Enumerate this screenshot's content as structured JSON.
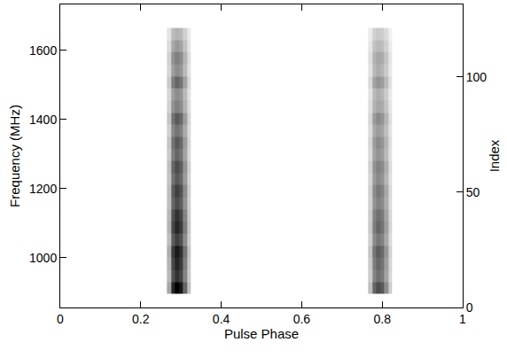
{
  "chart_data": {
    "type": "heatmap",
    "xlabel": "Pulse Phase",
    "ylabel": "Frequency (MHz)",
    "y2label": "Index",
    "xlim": [
      0,
      1
    ],
    "xticks": [
      0,
      0.2,
      0.4,
      0.6,
      0.8,
      1
    ],
    "ylim": [
      856,
      1733
    ],
    "yticks": [
      1000,
      1200,
      1400,
      1600
    ],
    "y2lim": [
      0,
      131.5
    ],
    "y2ticks": [
      0,
      50,
      100
    ],
    "grid": false,
    "colors": [
      "#ffffff",
      "#000000"
    ],
    "zlim": [
      0,
      1
    ],
    "x_edges": [
      0.265,
      0.275,
      0.285,
      0.295,
      0.305,
      0.315,
      0.325,
      0.765,
      0.775,
      0.785,
      0.795,
      0.805,
      0.815,
      0.825
    ],
    "y_edges": [
      895,
      930,
      965,
      1000,
      1035,
      1070,
      1105,
      1140,
      1175,
      1210,
      1245,
      1280,
      1315,
      1350,
      1385,
      1420,
      1455,
      1490,
      1525,
      1560,
      1595,
      1630,
      1665
    ],
    "cells": [
      [
        0.35,
        0.85,
        1.0,
        0.9,
        0.6,
        0.25,
        0,
        0.25,
        0.6,
        0.7,
        0.65,
        0.45,
        0.2
      ],
      [
        0.28,
        0.68,
        0.8,
        0.72,
        0.48,
        0.2,
        0,
        0.2,
        0.48,
        0.56,
        0.52,
        0.36,
        0.16
      ],
      [
        0.3,
        0.72,
        0.85,
        0.77,
        0.51,
        0.21,
        0,
        0.21,
        0.51,
        0.6,
        0.55,
        0.38,
        0.17
      ],
      [
        0.32,
        0.77,
        0.9,
        0.81,
        0.54,
        0.23,
        0,
        0.23,
        0.54,
        0.63,
        0.59,
        0.41,
        0.18
      ],
      [
        0.26,
        0.64,
        0.75,
        0.68,
        0.45,
        0.19,
        0,
        0.19,
        0.45,
        0.53,
        0.49,
        0.34,
        0.15
      ],
      [
        0.3,
        0.72,
        0.85,
        0.77,
        0.51,
        0.21,
        0,
        0.21,
        0.51,
        0.6,
        0.55,
        0.38,
        0.17
      ],
      [
        0.28,
        0.68,
        0.8,
        0.72,
        0.48,
        0.2,
        0,
        0.2,
        0.48,
        0.56,
        0.52,
        0.36,
        0.16
      ],
      [
        0.25,
        0.6,
        0.7,
        0.63,
        0.42,
        0.18,
        0,
        0.18,
        0.42,
        0.49,
        0.46,
        0.32,
        0.14
      ],
      [
        0.26,
        0.64,
        0.75,
        0.68,
        0.45,
        0.19,
        0,
        0.19,
        0.45,
        0.53,
        0.49,
        0.34,
        0.15
      ],
      [
        0.23,
        0.55,
        0.65,
        0.59,
        0.39,
        0.16,
        0,
        0.16,
        0.39,
        0.46,
        0.42,
        0.29,
        0.13
      ],
      [
        0.25,
        0.6,
        0.7,
        0.63,
        0.42,
        0.18,
        0,
        0.18,
        0.42,
        0.49,
        0.46,
        0.32,
        0.14
      ],
      [
        0.21,
        0.51,
        0.6,
        0.54,
        0.36,
        0.15,
        0,
        0.15,
        0.36,
        0.42,
        0.39,
        0.27,
        0.12
      ],
      [
        0.23,
        0.55,
        0.65,
        0.59,
        0.39,
        0.16,
        0,
        0.16,
        0.39,
        0.46,
        0.42,
        0.29,
        0.13
      ],
      [
        0.19,
        0.47,
        0.55,
        0.5,
        0.33,
        0.14,
        0,
        0.14,
        0.33,
        0.39,
        0.36,
        0.25,
        0.11
      ],
      [
        0.23,
        0.55,
        0.65,
        0.59,
        0.39,
        0.16,
        0,
        0.16,
        0.39,
        0.46,
        0.42,
        0.29,
        0.13
      ],
      [
        0.18,
        0.43,
        0.5,
        0.45,
        0.3,
        0.13,
        0,
        0.13,
        0.3,
        0.35,
        0.33,
        0.23,
        0.1
      ],
      [
        0.16,
        0.38,
        0.45,
        0.41,
        0.27,
        0.11,
        0,
        0.11,
        0.27,
        0.32,
        0.29,
        0.2,
        0.09
      ],
      [
        0.21,
        0.51,
        0.6,
        0.54,
        0.36,
        0.15,
        0,
        0.15,
        0.36,
        0.42,
        0.39,
        0.27,
        0.12
      ],
      [
        0.16,
        0.38,
        0.45,
        0.41,
        0.27,
        0.11,
        0,
        0.11,
        0.27,
        0.32,
        0.29,
        0.2,
        0.09
      ],
      [
        0.18,
        0.43,
        0.5,
        0.45,
        0.3,
        0.13,
        0,
        0.13,
        0.3,
        0.35,
        0.33,
        0.23,
        0.1
      ],
      [
        0.14,
        0.34,
        0.4,
        0.36,
        0.24,
        0.1,
        0,
        0.1,
        0.24,
        0.28,
        0.26,
        0.18,
        0.08
      ],
      [
        0.11,
        0.26,
        0.3,
        0.27,
        0.18,
        0.08,
        0,
        0.08,
        0.18,
        0.21,
        0.2,
        0.14,
        0.06
      ]
    ]
  }
}
